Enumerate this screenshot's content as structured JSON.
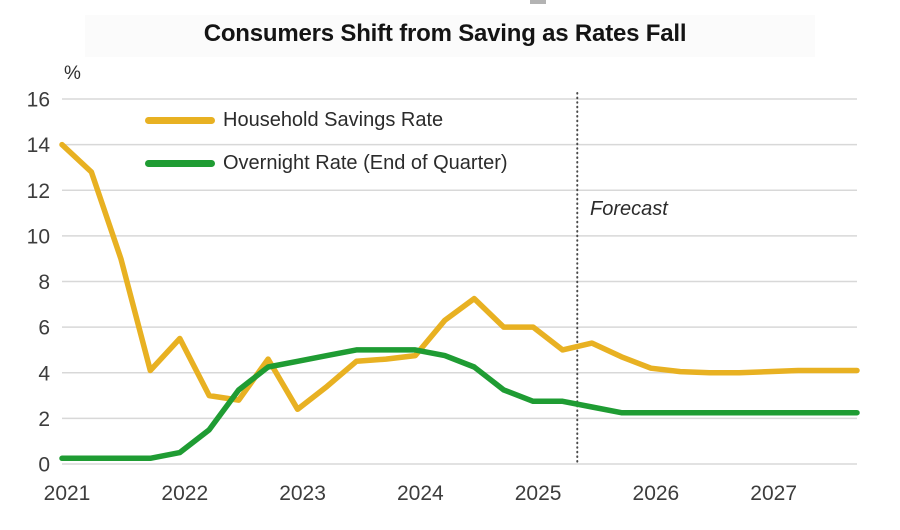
{
  "header": {
    "title": "Consumers Shift from Saving as Rates Fall"
  },
  "axis": {
    "unit_label": "%"
  },
  "legend": {
    "savings_label": "Household Savings Rate",
    "overnight_label": "Overnight Rate (End of Quarter)"
  },
  "annotation": {
    "forecast_label": "Forecast"
  },
  "colors": {
    "savings": "#E8B122",
    "overnight": "#1F9C33",
    "grid": "#D8D8D8",
    "axis_text": "#3D3D3D",
    "forecast_line": "#4A4A4A"
  },
  "chart_data": {
    "type": "line",
    "title": "Consumers Shift from Saving as Rates Fall",
    "ylabel": "%",
    "ylim": [
      0,
      16
    ],
    "y_ticks": [
      16,
      14,
      12,
      10,
      8,
      6,
      4,
      2,
      0
    ],
    "x_tick_labels": [
      "2021",
      "2022",
      "2023",
      "2024",
      "2025",
      "2026",
      "2027"
    ],
    "grid": "horizontal",
    "legend_position": "top-left-inside",
    "x": [
      "2021 Q1",
      "2021 Q2",
      "2021 Q3",
      "2021 Q4",
      "2022 Q1",
      "2022 Q2",
      "2022 Q3",
      "2022 Q4",
      "2023 Q1",
      "2023 Q2",
      "2023 Q3",
      "2023 Q4",
      "2024 Q1",
      "2024 Q2",
      "2024 Q3",
      "2024 Q4",
      "2025 Q1",
      "2025 Q2",
      "2025 Q3",
      "2025 Q4",
      "2026 Q1",
      "2026 Q2",
      "2026 Q3",
      "2026 Q4",
      "2027 Q1",
      "2027 Q2",
      "2027 Q3",
      "2027 Q4"
    ],
    "series": [
      {
        "name": "Household Savings Rate",
        "color": "#E8B122",
        "values": [
          14.0,
          12.8,
          9.0,
          4.1,
          5.5,
          3.0,
          2.8,
          4.6,
          2.4,
          3.4,
          4.5,
          4.6,
          4.75,
          6.3,
          7.25,
          6.0,
          6.0,
          5.0,
          5.3,
          4.7,
          4.2,
          4.05,
          4.0,
          4.0,
          4.05,
          4.1,
          4.1,
          4.1
        ]
      },
      {
        "name": "Overnight Rate (End of Quarter)",
        "color": "#1F9C33",
        "values": [
          0.25,
          0.25,
          0.25,
          0.25,
          0.5,
          1.5,
          3.25,
          4.25,
          4.5,
          4.75,
          5.0,
          5.0,
          5.0,
          4.75,
          4.25,
          3.25,
          2.75,
          2.75,
          2.5,
          2.25,
          2.25,
          2.25,
          2.25,
          2.25,
          2.25,
          2.25,
          2.25,
          2.25
        ]
      }
    ],
    "annotations": {
      "forecast": {
        "label": "Forecast",
        "starts_after": "2025 Q2",
        "boundary_index": 17.5
      }
    }
  }
}
